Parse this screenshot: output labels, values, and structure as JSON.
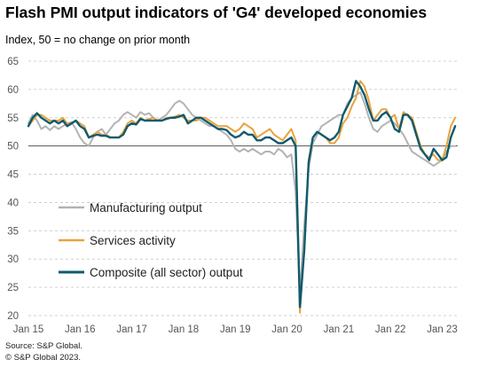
{
  "title": "Flash PMI output indicators of 'G4' developed economies",
  "subtitle": "Index, 50 = no change on prior month",
  "source": "Source: S&P Global.",
  "copyright": "© S&P Global 2023.",
  "chart_data": {
    "type": "line",
    "ylim": [
      20,
      65
    ],
    "yticks": [
      20,
      25,
      30,
      35,
      40,
      45,
      50,
      55,
      60,
      65
    ],
    "reference_line": 50,
    "grid": "horizontal dashed",
    "legend_position": "bottom-left",
    "xlim": [
      2015.0,
      2023.3
    ],
    "xtick_labels": [
      "Jan 15",
      "Jan 16",
      "Jan 17",
      "Jan 18",
      "Jan 19",
      "Jan 20",
      "Jan 21",
      "Jan 22",
      "Jan 23"
    ],
    "xtick_values": [
      2015,
      2016,
      2017,
      2018,
      2019,
      2020,
      2021,
      2022,
      2023
    ],
    "series": [
      {
        "name": "Manufacturing output",
        "color": "#b3b3b3",
        "x": [
          2015.0,
          2015.083,
          2015.167,
          2015.25,
          2015.333,
          2015.417,
          2015.5,
          2015.583,
          2015.667,
          2015.75,
          2015.833,
          2015.917,
          2016.0,
          2016.083,
          2016.167,
          2016.25,
          2016.333,
          2016.417,
          2016.5,
          2016.583,
          2016.667,
          2016.75,
          2016.833,
          2016.917,
          2017.0,
          2017.083,
          2017.167,
          2017.25,
          2017.333,
          2017.417,
          2017.5,
          2017.583,
          2017.667,
          2017.75,
          2017.833,
          2017.917,
          2018.0,
          2018.083,
          2018.167,
          2018.25,
          2018.333,
          2018.417,
          2018.5,
          2018.583,
          2018.667,
          2018.75,
          2018.833,
          2018.917,
          2019.0,
          2019.083,
          2019.167,
          2019.25,
          2019.333,
          2019.417,
          2019.5,
          2019.583,
          2019.667,
          2019.75,
          2019.833,
          2019.917,
          2020.0,
          2020.083,
          2020.167,
          2020.25,
          2020.333,
          2020.417,
          2020.5,
          2020.583,
          2020.667,
          2020.75,
          2020.833,
          2020.917,
          2021.0,
          2021.083,
          2021.167,
          2021.25,
          2021.333,
          2021.417,
          2021.5,
          2021.583,
          2021.667,
          2021.75,
          2021.833,
          2021.917,
          2022.0,
          2022.083,
          2022.167,
          2022.25,
          2022.333,
          2022.417,
          2022.5,
          2022.583,
          2022.667,
          2022.75,
          2022.833,
          2022.917,
          2023.0,
          2023.083,
          2023.167,
          2023.25
        ],
        "values": [
          54.0,
          55.5,
          54.5,
          53.0,
          53.5,
          52.8,
          53.5,
          53.0,
          53.5,
          54.0,
          54.2,
          53.0,
          51.5,
          50.5,
          50.0,
          51.5,
          52.5,
          53.0,
          52.0,
          53.0,
          54.0,
          54.5,
          55.5,
          56.0,
          55.5,
          55.0,
          56.0,
          55.5,
          55.8,
          55.0,
          54.5,
          55.0,
          55.5,
          56.5,
          57.5,
          58.0,
          57.5,
          56.5,
          55.5,
          55.0,
          54.5,
          54.0,
          53.5,
          53.5,
          53.0,
          52.5,
          52.0,
          51.0,
          49.5,
          49.0,
          49.5,
          49.0,
          49.5,
          49.0,
          48.5,
          49.0,
          49.0,
          48.5,
          49.5,
          49.0,
          48.0,
          48.5,
          42.0,
          24.0,
          36.0,
          46.0,
          50.5,
          52.0,
          53.5,
          54.0,
          54.5,
          55.0,
          55.5,
          55.5,
          57.5,
          58.5,
          59.0,
          59.5,
          57.5,
          55.0,
          53.0,
          52.5,
          53.5,
          54.0,
          54.5,
          54.0,
          53.0,
          52.0,
          50.5,
          49.0,
          48.5,
          48.0,
          47.5,
          47.0,
          46.5,
          47.0,
          47.5,
          49.0,
          50.0,
          50.0
        ]
      },
      {
        "name": "Services activity",
        "color": "#e8a33d",
        "x": [
          2015.0,
          2015.083,
          2015.167,
          2015.25,
          2015.333,
          2015.417,
          2015.5,
          2015.583,
          2015.667,
          2015.75,
          2015.833,
          2015.917,
          2016.0,
          2016.083,
          2016.167,
          2016.25,
          2016.333,
          2016.417,
          2016.5,
          2016.583,
          2016.667,
          2016.75,
          2016.833,
          2016.917,
          2017.0,
          2017.083,
          2017.167,
          2017.25,
          2017.333,
          2017.417,
          2017.5,
          2017.583,
          2017.667,
          2017.75,
          2017.833,
          2017.917,
          2018.0,
          2018.083,
          2018.167,
          2018.25,
          2018.333,
          2018.417,
          2018.5,
          2018.583,
          2018.667,
          2018.75,
          2018.833,
          2018.917,
          2019.0,
          2019.083,
          2019.167,
          2019.25,
          2019.333,
          2019.417,
          2019.5,
          2019.583,
          2019.667,
          2019.75,
          2019.833,
          2019.917,
          2020.0,
          2020.083,
          2020.167,
          2020.25,
          2020.333,
          2020.417,
          2020.5,
          2020.583,
          2020.667,
          2020.75,
          2020.833,
          2020.917,
          2021.0,
          2021.083,
          2021.167,
          2021.25,
          2021.333,
          2021.417,
          2021.5,
          2021.583,
          2021.667,
          2021.75,
          2021.833,
          2021.917,
          2022.0,
          2022.083,
          2022.167,
          2022.25,
          2022.333,
          2022.417,
          2022.5,
          2022.583,
          2022.667,
          2022.75,
          2022.833,
          2022.917,
          2023.0,
          2023.083,
          2023.167,
          2023.25
        ],
        "values": [
          53.5,
          54.5,
          55.5,
          55.5,
          55.0,
          54.5,
          54.5,
          54.5,
          55.0,
          54.0,
          54.0,
          54.5,
          54.0,
          53.5,
          51.5,
          52.0,
          52.5,
          52.0,
          52.0,
          51.5,
          51.5,
          51.5,
          52.5,
          54.0,
          54.5,
          54.0,
          55.0,
          54.5,
          54.8,
          55.0,
          54.5,
          54.5,
          55.0,
          55.0,
          55.2,
          55.5,
          55.0,
          54.5,
          54.5,
          54.5,
          55.0,
          55.0,
          54.5,
          54.0,
          53.5,
          53.5,
          53.5,
          53.0,
          52.5,
          53.0,
          54.0,
          53.5,
          53.0,
          51.5,
          52.0,
          52.5,
          53.0,
          52.0,
          51.5,
          51.0,
          52.0,
          53.0,
          51.0,
          20.5,
          32.0,
          47.5,
          51.5,
          52.5,
          52.0,
          51.5,
          50.5,
          50.5,
          51.5,
          54.0,
          55.0,
          57.0,
          58.5,
          61.5,
          60.5,
          58.0,
          54.5,
          55.5,
          56.5,
          56.5,
          55.0,
          55.5,
          53.0,
          56.0,
          55.5,
          55.0,
          52.5,
          50.0,
          48.5,
          48.0,
          48.5,
          47.5,
          47.5,
          50.0,
          53.5,
          55.0
        ]
      },
      {
        "name": "Composite (all sector) output",
        "color": "#0f5a6e",
        "x": [
          2015.0,
          2015.083,
          2015.167,
          2015.25,
          2015.333,
          2015.417,
          2015.5,
          2015.583,
          2015.667,
          2015.75,
          2015.833,
          2015.917,
          2016.0,
          2016.083,
          2016.167,
          2016.25,
          2016.333,
          2016.417,
          2016.5,
          2016.583,
          2016.667,
          2016.75,
          2016.833,
          2016.917,
          2017.0,
          2017.083,
          2017.167,
          2017.25,
          2017.333,
          2017.417,
          2017.5,
          2017.583,
          2017.667,
          2017.75,
          2017.833,
          2017.917,
          2018.0,
          2018.083,
          2018.167,
          2018.25,
          2018.333,
          2018.417,
          2018.5,
          2018.583,
          2018.667,
          2018.75,
          2018.833,
          2018.917,
          2019.0,
          2019.083,
          2019.167,
          2019.25,
          2019.333,
          2019.417,
          2019.5,
          2019.583,
          2019.667,
          2019.75,
          2019.833,
          2019.917,
          2020.0,
          2020.083,
          2020.167,
          2020.25,
          2020.333,
          2020.417,
          2020.5,
          2020.583,
          2020.667,
          2020.75,
          2020.833,
          2020.917,
          2021.0,
          2021.083,
          2021.167,
          2021.25,
          2021.333,
          2021.417,
          2021.5,
          2021.583,
          2021.667,
          2021.75,
          2021.833,
          2021.917,
          2022.0,
          2022.083,
          2022.167,
          2022.25,
          2022.333,
          2022.417,
          2022.5,
          2022.583,
          2022.667,
          2022.75,
          2022.833,
          2022.917,
          2023.0,
          2023.083,
          2023.167,
          2023.25
        ],
        "values": [
          53.5,
          55.0,
          55.8,
          55.0,
          54.5,
          54.0,
          54.5,
          54.0,
          54.5,
          53.5,
          54.0,
          54.5,
          53.5,
          53.0,
          51.5,
          51.8,
          52.0,
          51.8,
          51.8,
          51.5,
          51.5,
          51.5,
          52.0,
          53.5,
          54.0,
          53.8,
          54.8,
          54.5,
          54.5,
          54.5,
          54.5,
          54.5,
          54.8,
          55.0,
          55.0,
          55.2,
          55.5,
          54.0,
          54.5,
          55.0,
          55.0,
          54.5,
          54.0,
          53.5,
          53.0,
          53.0,
          52.8,
          52.0,
          51.5,
          51.8,
          52.5,
          52.0,
          52.0,
          51.0,
          51.0,
          51.5,
          51.5,
          51.0,
          50.5,
          50.5,
          51.0,
          51.5,
          50.0,
          21.5,
          31.5,
          47.0,
          51.5,
          52.5,
          52.0,
          51.5,
          51.0,
          51.5,
          52.5,
          55.5,
          57.0,
          58.5,
          61.5,
          60.5,
          59.0,
          56.5,
          54.5,
          54.5,
          55.5,
          56.0,
          55.0,
          53.0,
          52.5,
          55.5,
          55.5,
          54.5,
          52.0,
          49.5,
          48.5,
          47.5,
          49.5,
          48.5,
          47.5,
          48.0,
          51.5,
          53.5
        ]
      }
    ]
  }
}
